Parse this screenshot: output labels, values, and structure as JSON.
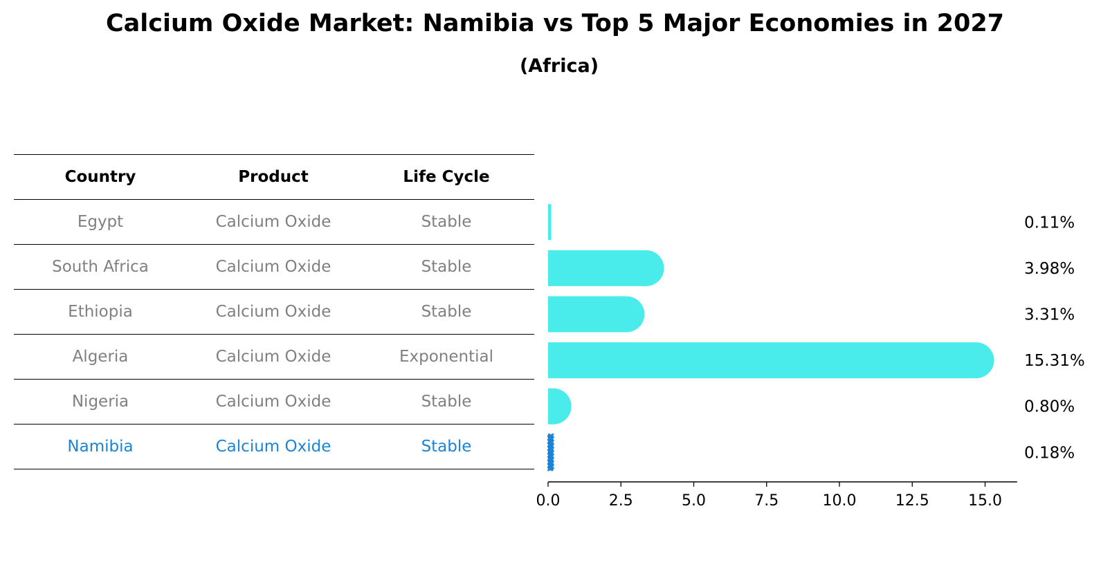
{
  "title": "Calcium Oxide Market: Namibia vs Top 5 Major Economies in 2027",
  "subtitle": "(Africa)",
  "table": {
    "headers": [
      "Country",
      "Product",
      "Life Cycle"
    ],
    "rows": [
      [
        "Egypt",
        "Calcium Oxide",
        "Stable"
      ],
      [
        "South Africa",
        "Calcium Oxide",
        "Stable"
      ],
      [
        "Ethiopia",
        "Calcium Oxide",
        "Stable"
      ],
      [
        "Algeria",
        "Calcium Oxide",
        "Exponential"
      ],
      [
        "Nigeria",
        "Calcium Oxide",
        "Stable"
      ],
      [
        "Namibia",
        "Calcium Oxide",
        "Stable"
      ]
    ],
    "highlight_row": 5
  },
  "colors": {
    "bar": "#4aeceb",
    "highlight": "#1a84d8",
    "muted_text": "#808080"
  },
  "chart_data": {
    "type": "bar",
    "orientation": "horizontal",
    "categories": [
      "Egypt",
      "South Africa",
      "Ethiopia",
      "Algeria",
      "Nigeria",
      "Namibia"
    ],
    "values": [
      0.11,
      3.98,
      3.31,
      15.31,
      0.8,
      0.18
    ],
    "value_labels": [
      "0.11%",
      "3.98%",
      "3.31%",
      "15.31%",
      "0.80%",
      "0.18%"
    ],
    "xlim": [
      0,
      16.1
    ],
    "xticks": [
      0,
      2.5,
      5,
      7.5,
      10,
      12.5,
      15
    ],
    "xtick_labels": [
      "0.0",
      "2.5",
      "5.0",
      "7.5",
      "10.0",
      "12.5",
      "15.0"
    ],
    "xlabel": "",
    "ylabel": "",
    "grid": false,
    "highlight_category": "Namibia"
  }
}
